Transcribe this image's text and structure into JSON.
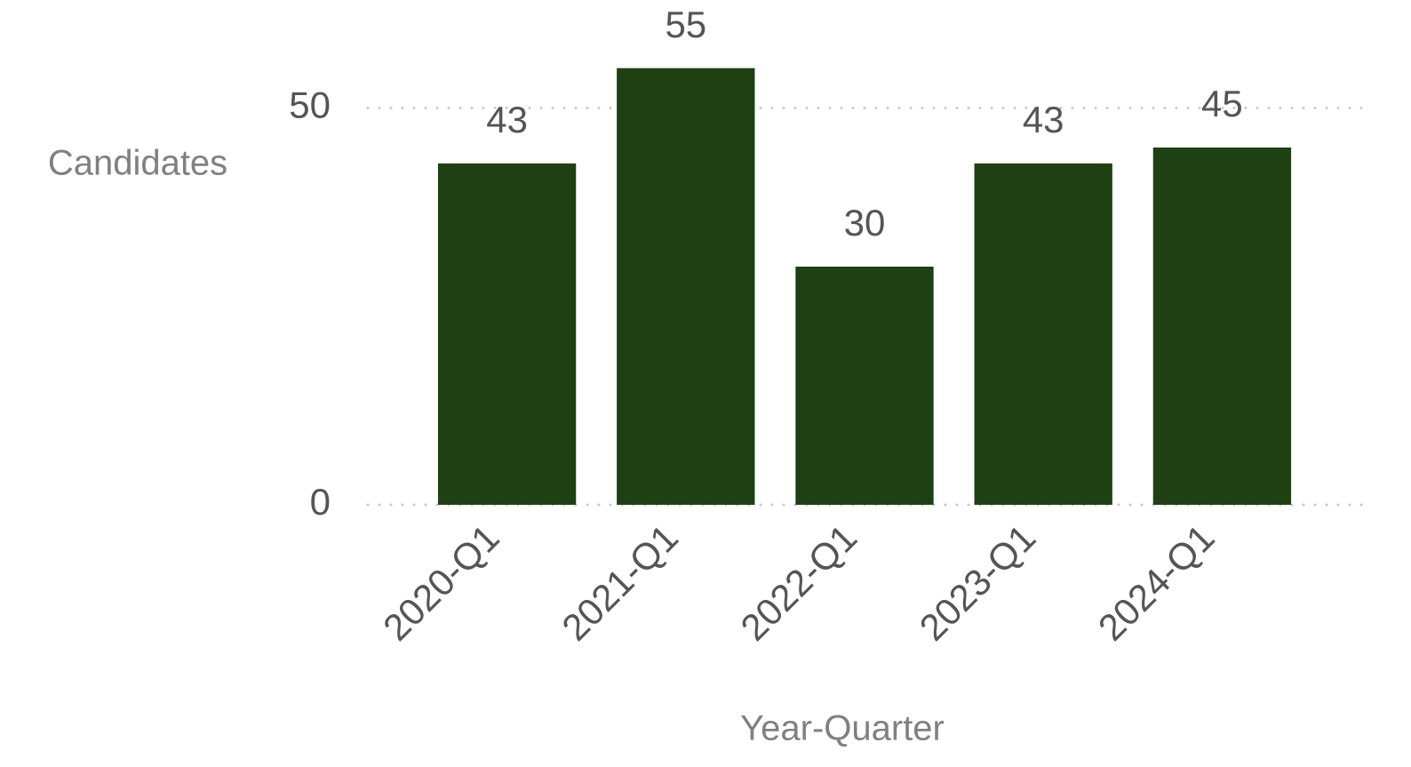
{
  "chart_data": {
    "type": "bar",
    "x_label": "Year-Quarter",
    "y_label": "Candidates",
    "categories": [
      "2020-Q1",
      "2021-Q1",
      "2022-Q1",
      "2023-Q1",
      "2024-Q1"
    ],
    "values": [
      43,
      55,
      30,
      43,
      45
    ],
    "color": "#1f4013",
    "ylim": [
      0,
      60
    ],
    "yticks": [
      0,
      50
    ],
    "grid": true
  }
}
